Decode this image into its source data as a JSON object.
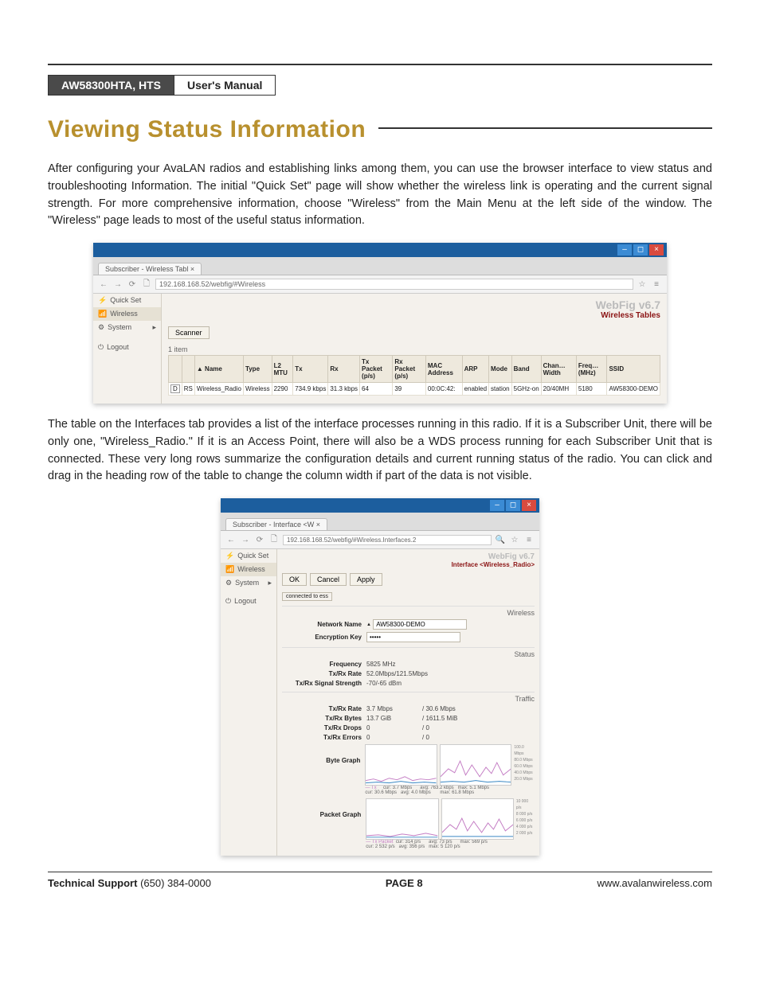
{
  "header": {
    "model": "AW58300HTA, HTS",
    "manual": "User's Manual"
  },
  "title": "Viewing Status Information",
  "para1": "After configuring your AvaLAN radios and establishing links among them, you can use the browser interface to view status and troubleshooting Information. The initial \"Quick Set\" page will show whether the wireless link is operating and the current signal strength. For more comprehensive information, choose \"Wireless\" from the Main Menu at the left side of the window. The \"Wireless\"  page leads to most of the useful status information.",
  "para2": "The table on the Interfaces tab provides a list of the interface processes running in this radio. If it is a Subscriber Unit, there will be only one, \"Wireless_Radio.\" If it is an Access Point, there will also be a WDS process running for each Subscriber Unit that is connected. These very long rows summarize the configuration details and current running status of the radio. You can click and drag in the heading row of the table to change the column width if part of the data is not visible.",
  "ss1": {
    "tab_title": "Subscriber - Wireless Tabl ×",
    "url": "192.168.168.52/webfig/#Wireless",
    "sidebar": [
      "Quick Set",
      "Wireless",
      "System",
      "Logout"
    ],
    "brand": "WebFig v6.7",
    "subbrand": "Wireless Tables",
    "scanner_btn": "Scanner",
    "item_count": "1 item",
    "columns": [
      "",
      "",
      "▲ Name",
      "Type",
      "L2 MTU",
      "Tx",
      "Rx",
      "Tx Packet (p/s)",
      "Rx Packet (p/s)",
      "MAC Address",
      "ARP",
      "Mode",
      "Band",
      "Chan… Width",
      "Freq… (MHz)",
      "SSID"
    ],
    "row": [
      "D",
      "RS",
      "Wireless_Radio",
      "Wireless",
      "2290",
      "734.9 kbps",
      "31.3 kbps",
      "64",
      "39",
      "00:0C:42:",
      "enabled",
      "station",
      "5GHz-on",
      "20/40MH",
      "5180",
      "AW58300-DEMO"
    ]
  },
  "ss2": {
    "tab_title": "Subscriber - Interface <W ×",
    "url": "192.168.168.52/webfig/#Wireless.Interfaces.2",
    "brand": "WebFig v6.7",
    "subbrand": "Interface <Wireless_Radio>",
    "buttons": [
      "OK",
      "Cancel",
      "Apply"
    ],
    "connected": "connected to ess",
    "wireless_section": "Wireless",
    "network_name_label": "Network Name",
    "network_name": "AW58300-DEMO",
    "enc_key_label": "Encryption Key",
    "enc_key": "•••••",
    "status_section": "Status",
    "freq_label": "Frequency",
    "freq": "5825 MHz",
    "rate_label": "Tx/Rx Rate",
    "rate": "52.0Mbps/121.5Mbps",
    "sig_label": "Tx/Rx Signal Strength",
    "sig": "-70/-65 dBm",
    "traffic_section": "Traffic",
    "txrx_rate_label": "Tx/Rx Rate",
    "txrx_rate_a": "3.7 Mbps",
    "txrx_rate_b": "/  30.6 Mbps",
    "txrx_bytes_label": "Tx/Rx Bytes",
    "txrx_bytes_a": "13.7 GiB",
    "txrx_bytes_b": "/  1611.5 MiB",
    "txrx_drops_label": "Tx/Rx Drops",
    "txrx_drops_a": "0",
    "txrx_drops_b": "/  0",
    "txrx_errors_label": "Tx/Rx Errors",
    "txrx_errors_a": "0",
    "txrx_errors_b": "/  0",
    "byte_graph_label": "Byte Graph",
    "packet_graph_label": "Packet Graph",
    "byte_yticks": [
      "100.0 Mbps",
      "80.0 Mbps",
      "60.0 Mbps",
      "40.0 Mbps",
      "20.0 Mbps"
    ],
    "pkt_yticks": [
      "10 000 p/s",
      "8 000 p/s",
      "6 000 p/s",
      "4 000 p/s",
      "2 000 p/s"
    ],
    "byte_legend": {
      "tx": "— Tx",
      "rx": "— Rx",
      "stats": "cur: 3.7 Mbps      avg: 763.2 kbps   max: 5.1 Mbps\ncur: 30.6 Mbps   avg: 4.0 Mbps       max: 61.8 Mbps"
    },
    "pkt_legend": {
      "tx": "— Tx Packet",
      "rx": "— Rx Packet",
      "stats": "cur: 314 p/s      avg: 73 p/s      max: 569 p/s\ncur: 2 532 p/s   avg: 356 p/s   max: 5 120 p/s"
    },
    "graph_colors": {
      "tx": "#c47dc4",
      "rx": "#3a88c4"
    }
  },
  "footer": {
    "support_label": "Technical Support",
    "support_phone": "(650) 384-0000",
    "page": "PAGE 8",
    "url": "www.avalanwireless.com"
  }
}
